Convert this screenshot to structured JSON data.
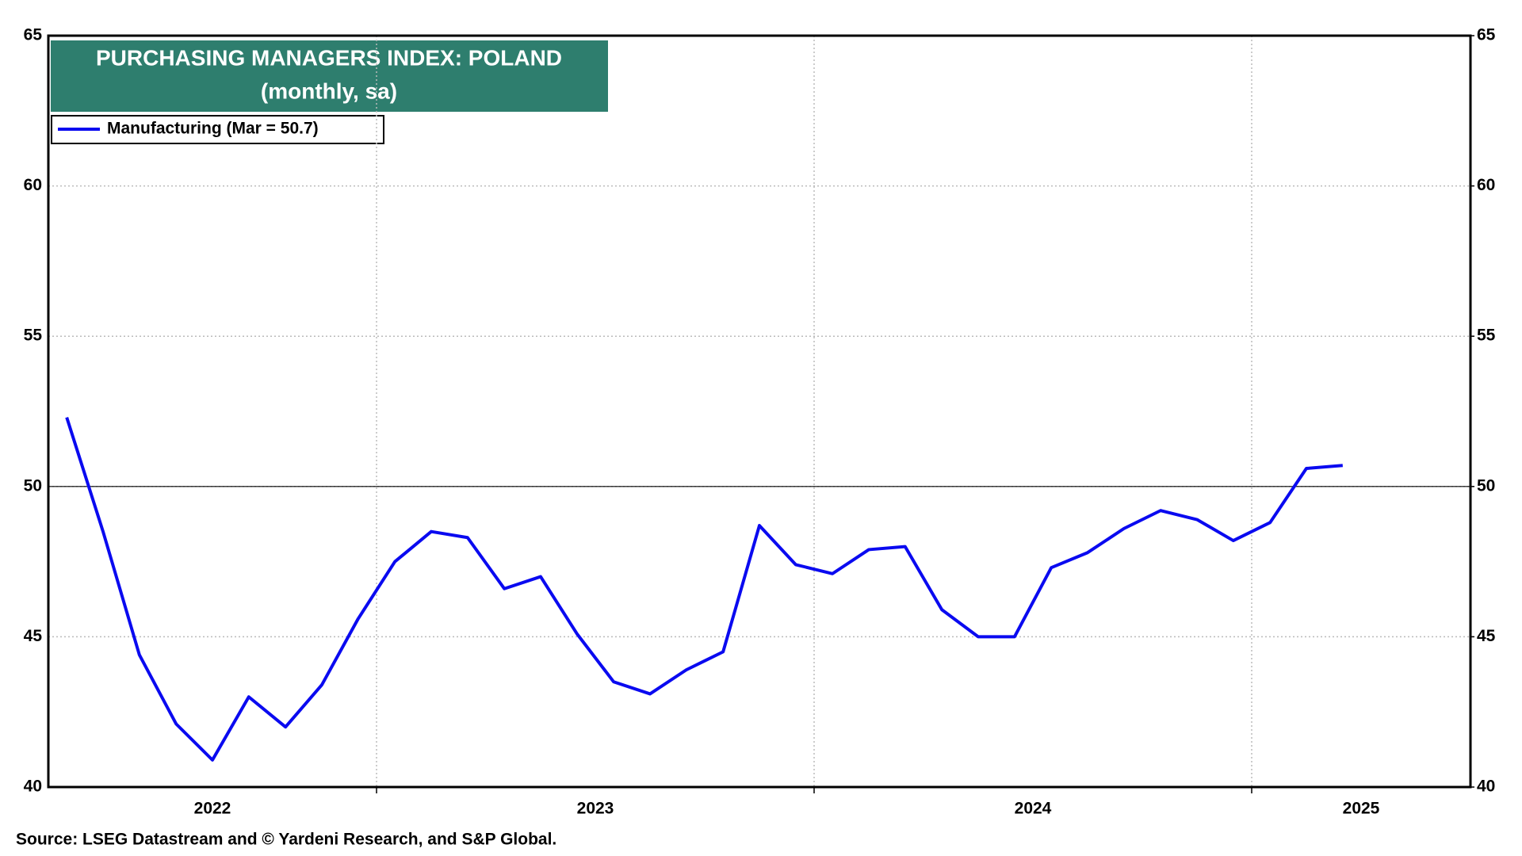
{
  "chart_data": {
    "type": "line",
    "title": "PURCHASING MANAGERS INDEX: POLAND",
    "subtitle": "(monthly, sa)",
    "source": "Source: LSEG Datastream and © Yardeni Research, and S&P Global.",
    "x": [
      2022.292,
      2022.375,
      2022.458,
      2022.542,
      2022.625,
      2022.708,
      2022.792,
      2022.875,
      2022.958,
      2023.042,
      2023.125,
      2023.208,
      2023.292,
      2023.375,
      2023.458,
      2023.542,
      2023.625,
      2023.708,
      2023.792,
      2023.875,
      2023.958,
      2024.042,
      2024.125,
      2024.208,
      2024.292,
      2024.375,
      2024.458,
      2024.542,
      2024.625,
      2024.708,
      2024.792,
      2024.875,
      2024.958,
      2025.042,
      2025.125,
      2025.208
    ],
    "series": [
      {
        "name": "Manufacturing (Mar = 50.7)",
        "color": "#0a0af0",
        "values": [
          52.3,
          48.5,
          44.4,
          42.1,
          40.9,
          43.0,
          42.0,
          43.4,
          45.6,
          47.5,
          48.5,
          48.3,
          46.6,
          47.0,
          45.1,
          43.5,
          43.1,
          43.9,
          44.5,
          48.7,
          47.4,
          47.1,
          47.9,
          48.0,
          45.9,
          45.0,
          45.0,
          47.3,
          47.8,
          48.6,
          49.2,
          48.9,
          48.2,
          48.8,
          50.6,
          50.7
        ]
      }
    ],
    "xlim": [
      2022.25,
      2025.5
    ],
    "xticks": [
      {
        "value": 2022.625,
        "label": "2022"
      },
      {
        "value": 2023.5,
        "label": "2023"
      },
      {
        "value": 2024.5,
        "label": "2024"
      },
      {
        "value": 2025.25,
        "label": "2025"
      }
    ],
    "x_gridlines": [
      2023,
      2024,
      2025
    ],
    "ylim": [
      40,
      65
    ],
    "yticks": [
      40,
      45,
      50,
      55,
      60,
      65
    ],
    "y2lim": [
      40,
      65
    ],
    "y2ticks": [
      40,
      45,
      50,
      55,
      60,
      65
    ],
    "hline": 50,
    "grid": true
  }
}
